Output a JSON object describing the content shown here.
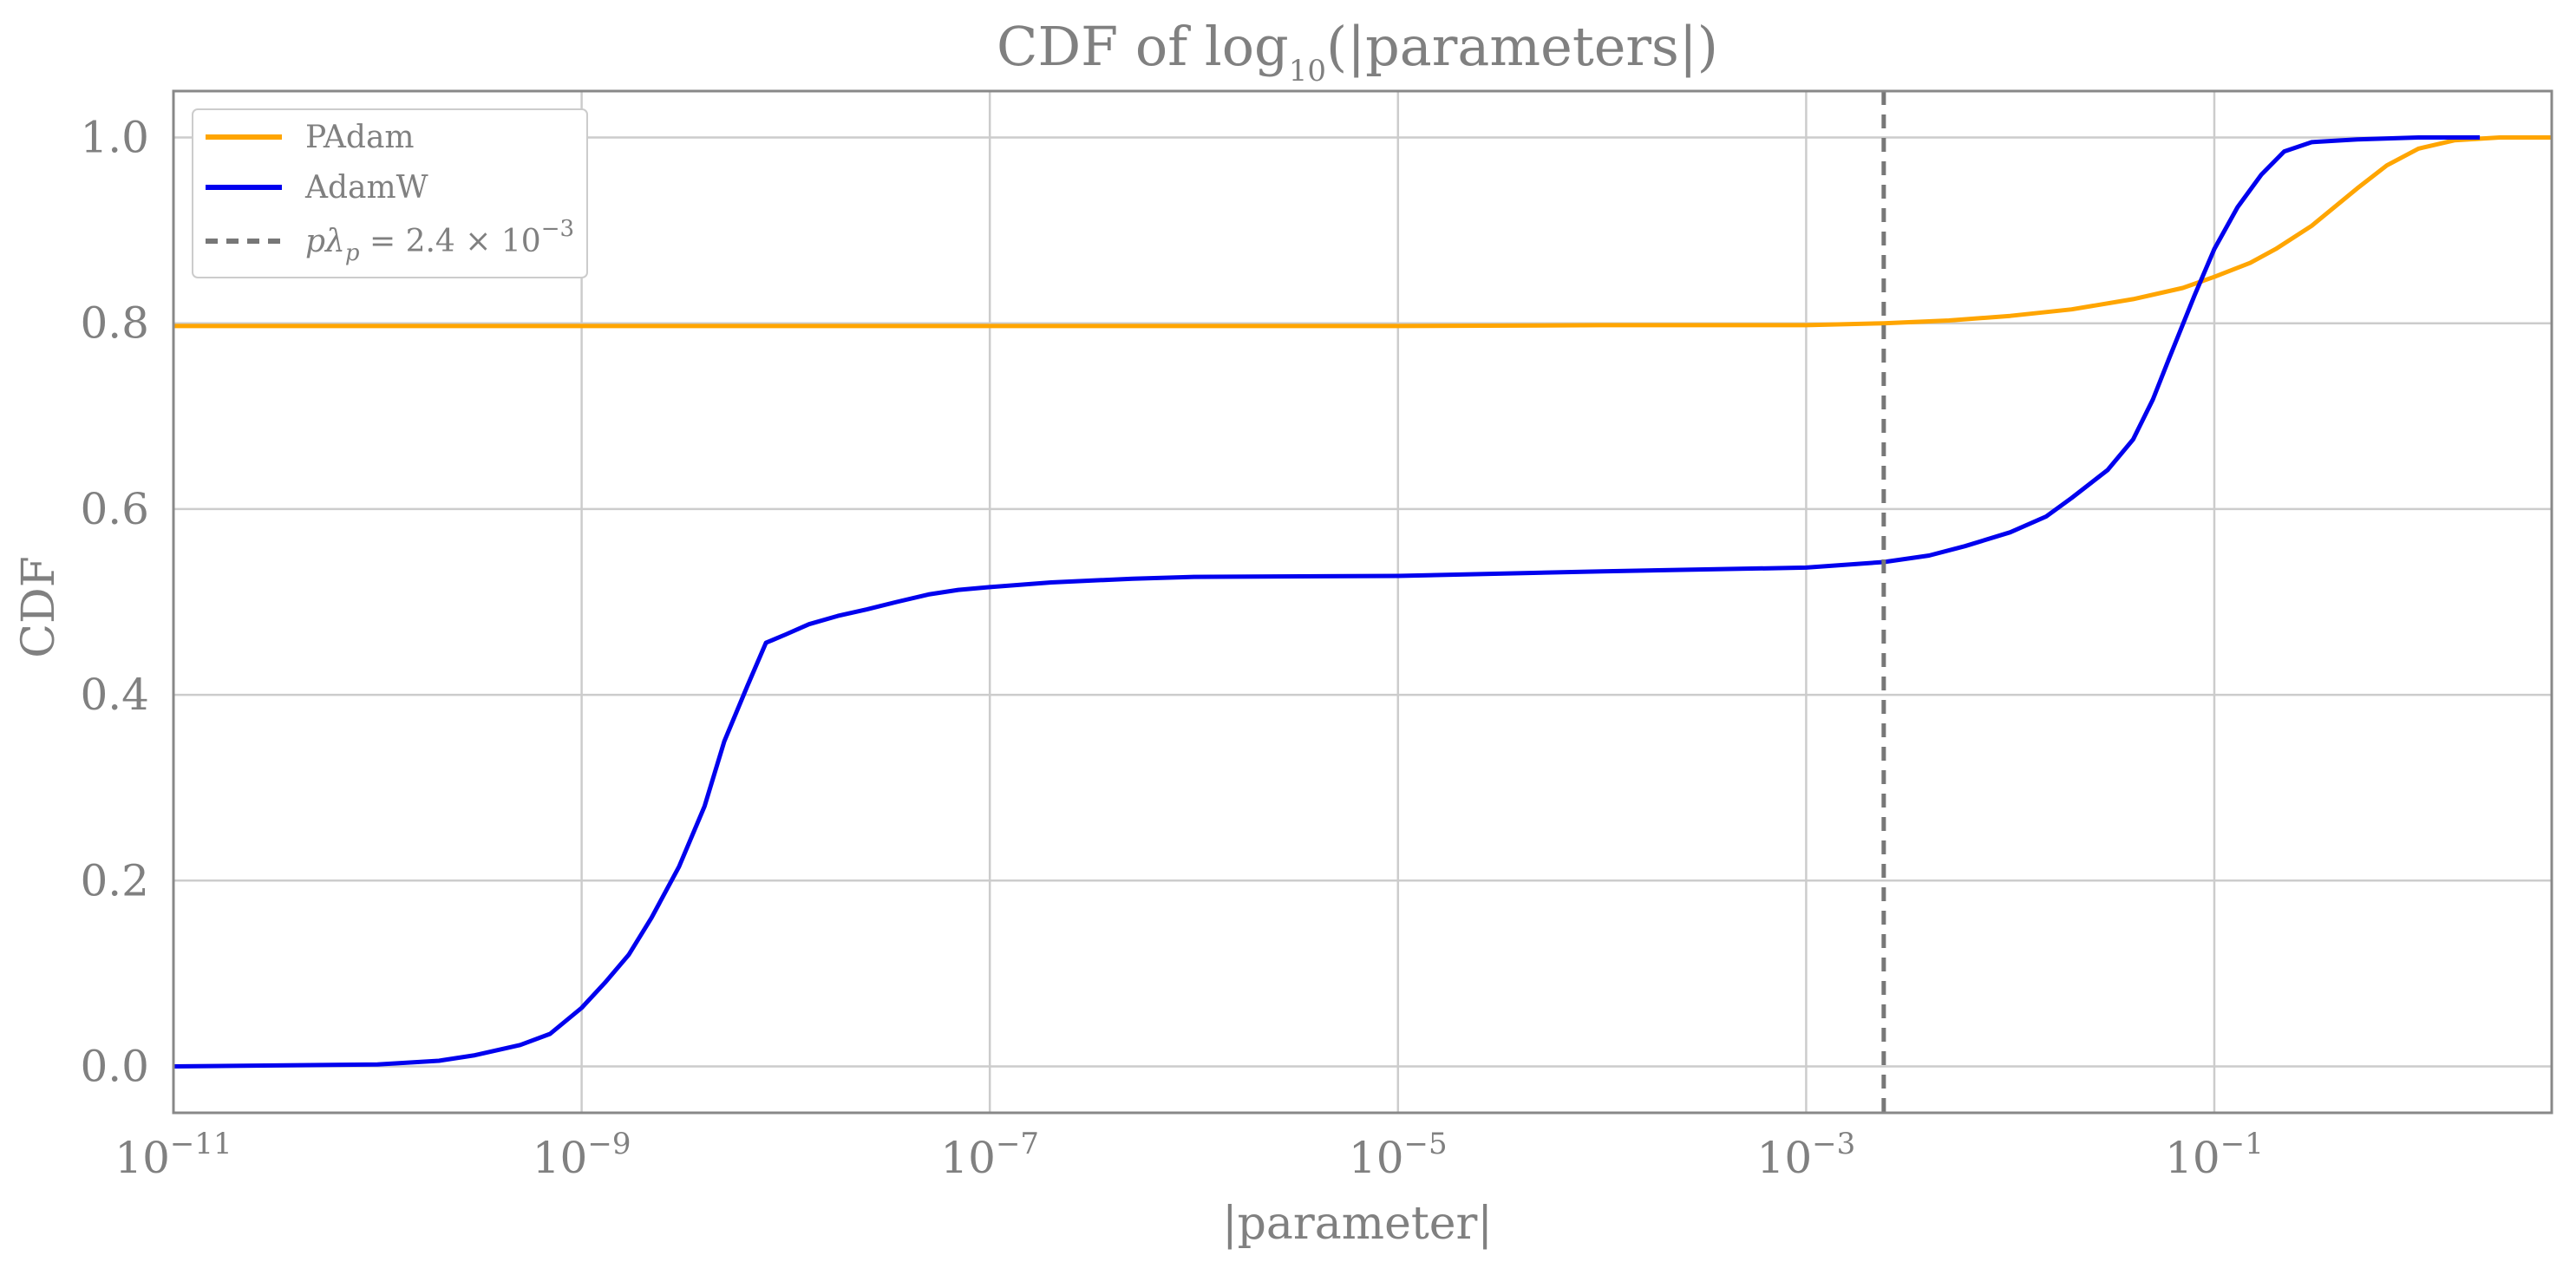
{
  "chart_data": {
    "type": "line",
    "title": "CDF of log",
    "title_sub": "10",
    "title_tail": "(|parameters|)",
    "xlabel": "|parameter|",
    "ylabel": "CDF",
    "xscale": "log",
    "xlim": [
      1e-11,
      4.5
    ],
    "ylim": [
      -0.05,
      1.05
    ],
    "grid": true,
    "legend_position": "upper-left",
    "x_ticks": [
      {
        "base": "10",
        "exp": "−11",
        "value": 1e-11
      },
      {
        "base": "10",
        "exp": "−9",
        "value": 1e-09
      },
      {
        "base": "10",
        "exp": "−7",
        "value": 1e-07
      },
      {
        "base": "10",
        "exp": "−5",
        "value": 1e-05
      },
      {
        "base": "10",
        "exp": "−3",
        "value": 0.001
      },
      {
        "base": "10",
        "exp": "−1",
        "value": 0.1
      }
    ],
    "y_ticks": [
      "0.0",
      "0.2",
      "0.4",
      "0.6",
      "0.8",
      "1.0"
    ],
    "y_tick_values": [
      0.0,
      0.2,
      0.4,
      0.6,
      0.8,
      1.0
    ],
    "series": [
      {
        "name": "PAdam",
        "color": "#FFA500",
        "x": [
          1e-11,
          1e-09,
          1e-07,
          1e-05,
          0.0001,
          0.001,
          0.0024,
          0.005,
          0.01,
          0.02,
          0.04,
          0.07,
          0.1,
          0.15,
          0.2,
          0.3,
          0.5,
          0.7,
          1.0,
          1.5,
          2.5,
          4.5
        ],
        "y": [
          0.797,
          0.797,
          0.797,
          0.797,
          0.798,
          0.798,
          0.8,
          0.803,
          0.808,
          0.815,
          0.826,
          0.838,
          0.85,
          0.865,
          0.88,
          0.905,
          0.945,
          0.97,
          0.988,
          0.997,
          1.0,
          1.0
        ]
      },
      {
        "name": "AdamW",
        "color": "#0000EE",
        "x": [
          1e-11,
          1e-10,
          2e-10,
          3e-10,
          5e-10,
          7e-10,
          1e-09,
          1.3e-09,
          1.7e-09,
          2.2e-09,
          3e-09,
          4e-09,
          5e-09,
          6.5e-09,
          8e-09,
          1e-08,
          1.3e-08,
          1.8e-08,
          2.5e-08,
          3.5e-08,
          5e-08,
          7e-08,
          1e-07,
          2e-07,
          5e-07,
          1e-06,
          1e-05,
          0.0001,
          0.001,
          0.0024,
          0.004,
          0.006,
          0.01,
          0.015,
          0.02,
          0.03,
          0.04,
          0.05,
          0.06,
          0.08,
          0.1,
          0.13,
          0.17,
          0.22,
          0.3,
          0.5,
          1.0,
          2.0
        ],
        "y": [
          0.0,
          0.002,
          0.006,
          0.012,
          0.023,
          0.035,
          0.063,
          0.09,
          0.12,
          0.16,
          0.215,
          0.28,
          0.35,
          0.41,
          0.456,
          0.465,
          0.476,
          0.485,
          0.492,
          0.5,
          0.508,
          0.513,
          0.516,
          0.521,
          0.525,
          0.527,
          0.528,
          0.533,
          0.537,
          0.543,
          0.55,
          0.56,
          0.575,
          0.592,
          0.612,
          0.642,
          0.675,
          0.718,
          0.762,
          0.83,
          0.88,
          0.925,
          0.96,
          0.985,
          0.995,
          0.998,
          1.0,
          1.0
        ]
      }
    ],
    "reference_line": {
      "name": "pλp = 2.4 × 10−3",
      "legend_label_parts": {
        "p": "p",
        "lambda": "λ",
        "sub": "p",
        "rhs": " = 2.4 × 10",
        "exp": "−3"
      },
      "x": 0.0024,
      "color": "#777777",
      "style": "dashed"
    }
  }
}
